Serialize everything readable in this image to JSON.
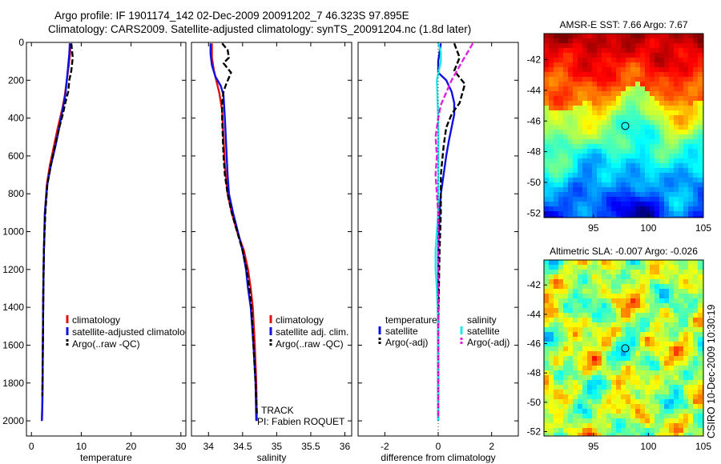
{
  "header": {
    "title_line1": "Argo profile: IF 1901174_142 02-Dec-2009 20091202_7 46.323S 97.895E",
    "title_line2": "Climatology: CARS2009. Satellite-adjusted climatology: synTS_20091204.nc (1.8d later)"
  },
  "side_label": "CSIRO 10-Dec-2009 10:30:19",
  "colors": {
    "climatology": "#e01010",
    "satellite": "#1010e0",
    "argo": "#000000",
    "satellite_salinity": "#20e8e8",
    "argo_salinity": "#e020e0"
  },
  "chart_data": [
    {
      "id": "temperature",
      "type": "line",
      "xlabel": "temperature",
      "ylabel": "",
      "xlim": [
        -1,
        31
      ],
      "ylim": [
        2080,
        0
      ],
      "xticks": [
        0,
        10,
        20,
        30
      ],
      "yticks": [
        0,
        200,
        400,
        600,
        800,
        1000,
        1200,
        1400,
        1600,
        1800,
        2000
      ],
      "legend": {
        "position": "lower-right",
        "entries": [
          "climatology",
          "satellite-adjusted climatology",
          "Argo(..raw -QC)"
        ]
      },
      "series": [
        {
          "name": "climatology",
          "color": "#e01010",
          "dash": false,
          "points": [
            [
              7.8,
              5
            ],
            [
              7.8,
              50
            ],
            [
              7.5,
              120
            ],
            [
              7.1,
              200
            ],
            [
              6.7,
              280
            ],
            [
              6.2,
              350
            ],
            [
              5.3,
              450
            ],
            [
              4.5,
              550
            ],
            [
              3.7,
              650
            ],
            [
              3.1,
              750
            ],
            [
              2.7,
              900
            ],
            [
              2.5,
              1100
            ],
            [
              2.4,
              1300
            ],
            [
              2.3,
              1600
            ],
            [
              2.2,
              1900
            ],
            [
              2.1,
              2000
            ]
          ]
        },
        {
          "name": "satellite-adjusted climatology",
          "color": "#1010e0",
          "dash": false,
          "points": [
            [
              7.7,
              5
            ],
            [
              7.6,
              60
            ],
            [
              7.4,
              120
            ],
            [
              7.1,
              200
            ],
            [
              6.8,
              280
            ],
            [
              6.3,
              350
            ],
            [
              5.6,
              450
            ],
            [
              4.8,
              550
            ],
            [
              3.9,
              650
            ],
            [
              3.2,
              750
            ],
            [
              2.7,
              900
            ],
            [
              2.5,
              1100
            ],
            [
              2.4,
              1300
            ],
            [
              2.3,
              1600
            ],
            [
              2.2,
              1900
            ],
            [
              2.1,
              2000
            ]
          ]
        },
        {
          "name": "Argo(..raw -QC)",
          "color": "#000000",
          "dash": true,
          "points": [
            [
              8.0,
              5
            ],
            [
              8.3,
              80
            ],
            [
              8.0,
              150
            ],
            [
              7.6,
              200
            ],
            [
              7.4,
              260
            ],
            [
              6.8,
              320
            ],
            [
              6.3,
              380
            ],
            [
              5.6,
              450
            ],
            [
              4.7,
              550
            ],
            [
              3.9,
              650
            ],
            [
              3.2,
              750
            ],
            [
              2.8,
              900
            ],
            [
              2.5,
              1100
            ],
            [
              2.4,
              1300
            ],
            [
              2.3,
              1600
            ],
            [
              2.2,
              1870
            ]
          ]
        }
      ]
    },
    {
      "id": "salinity",
      "type": "line",
      "xlabel": "salinity",
      "ylabel": "",
      "xlim": [
        33.75,
        36.1
      ],
      "ylim": [
        2080,
        0
      ],
      "xticks": [
        34,
        34.5,
        35,
        35.5,
        36
      ],
      "legend": {
        "position": "lower-right",
        "entries": [
          "climatology",
          "satellite adj. clim.",
          "Argo(..raw -QC)"
        ]
      },
      "annotations": [
        "TRACK",
        "PI: Fabien ROQUET"
      ],
      "series": [
        {
          "name": "climatology",
          "color": "#e01010",
          "dash": false,
          "points": [
            [
              34.05,
              5
            ],
            [
              34.05,
              80
            ],
            [
              34.08,
              150
            ],
            [
              34.12,
              210
            ],
            [
              34.16,
              270
            ],
            [
              34.2,
              360
            ],
            [
              34.22,
              500
            ],
            [
              34.24,
              650
            ],
            [
              34.28,
              800
            ],
            [
              34.34,
              900
            ],
            [
              34.42,
              1000
            ],
            [
              34.52,
              1100
            ],
            [
              34.58,
              1200
            ],
            [
              34.62,
              1300
            ],
            [
              34.65,
              1400
            ],
            [
              34.68,
              1600
            ],
            [
              34.7,
              1800
            ],
            [
              34.71,
              2000
            ]
          ]
        },
        {
          "name": "satellite adj. clim.",
          "color": "#1010e0",
          "dash": false,
          "points": [
            [
              34.03,
              5
            ],
            [
              34.03,
              60
            ],
            [
              34.05,
              120
            ],
            [
              34.1,
              180
            ],
            [
              34.18,
              230
            ],
            [
              34.22,
              280
            ],
            [
              34.24,
              400
            ],
            [
              34.26,
              550
            ],
            [
              34.28,
              700
            ],
            [
              34.3,
              800
            ],
            [
              34.36,
              900
            ],
            [
              34.43,
              1000
            ],
            [
              34.5,
              1100
            ],
            [
              34.55,
              1200
            ],
            [
              34.58,
              1300
            ],
            [
              34.62,
              1400
            ],
            [
              34.66,
              1600
            ],
            [
              34.69,
              1800
            ],
            [
              34.7,
              2000
            ]
          ]
        },
        {
          "name": "Argo(..raw -QC)",
          "color": "#000000",
          "dash": true,
          "points": [
            [
              34.2,
              5
            ],
            [
              34.28,
              40
            ],
            [
              34.3,
              80
            ],
            [
              34.22,
              110
            ],
            [
              34.33,
              160
            ],
            [
              34.26,
              220
            ],
            [
              34.22,
              260
            ],
            [
              34.2,
              320
            ],
            [
              34.2,
              400
            ],
            [
              34.21,
              500
            ],
            [
              34.22,
              600
            ],
            [
              34.24,
              700
            ],
            [
              34.28,
              800
            ],
            [
              34.34,
              900
            ],
            [
              34.42,
              1000
            ],
            [
              34.5,
              1100
            ],
            [
              34.56,
              1200
            ],
            [
              34.6,
              1300
            ],
            [
              34.63,
              1400
            ],
            [
              34.66,
              1600
            ],
            [
              34.69,
              1800
            ],
            [
              34.71,
              1970
            ]
          ]
        }
      ]
    },
    {
      "id": "difference",
      "type": "line",
      "xlabel": "difference from climatology",
      "ylabel": "",
      "xlim": [
        -3,
        3
      ],
      "ylim": [
        2080,
        0
      ],
      "xticks": [
        -2,
        0,
        2
      ],
      "legend": {
        "position": "lower-center",
        "groups": [
          "temperature",
          "salinity"
        ],
        "entries": [
          "satellite",
          "Argo(-adj)",
          "satellite",
          "Argo(-adj)"
        ]
      },
      "series": [
        {
          "name": "temperature satellite",
          "color": "#1010e0",
          "dash": false,
          "points": [
            [
              0.1,
              5
            ],
            [
              0.0,
              100
            ],
            [
              0.0,
              160
            ],
            [
              0.3,
              200
            ],
            [
              0.5,
              260
            ],
            [
              0.6,
              320
            ],
            [
              0.6,
              380
            ],
            [
              0.5,
              450
            ],
            [
              0.4,
              520
            ],
            [
              0.3,
              600
            ],
            [
              0.2,
              700
            ],
            [
              0.1,
              800
            ],
            [
              0.05,
              900
            ],
            [
              0.0,
              1100
            ],
            [
              0.0,
              1500
            ],
            [
              0.0,
              2000
            ]
          ]
        },
        {
          "name": "temperature Argo(-adj)",
          "color": "#000000",
          "dash": true,
          "points": [
            [
              0.6,
              5
            ],
            [
              0.8,
              80
            ],
            [
              0.6,
              150
            ],
            [
              1.0,
              220
            ],
            [
              0.8,
              320
            ],
            [
              0.5,
              380
            ],
            [
              0.3,
              450
            ],
            [
              0.2,
              550
            ],
            [
              0.1,
              700
            ],
            [
              0.1,
              900
            ],
            [
              0.05,
              1100
            ],
            [
              0.0,
              1500
            ],
            [
              0.0,
              1870
            ]
          ]
        },
        {
          "name": "salinity satellite",
          "color": "#20e8e8",
          "dash": false,
          "points": [
            [
              0.0,
              5
            ],
            [
              0.1,
              50
            ],
            [
              0.1,
              100
            ],
            [
              -0.05,
              200
            ],
            [
              0.0,
              400
            ],
            [
              0.0,
              700
            ],
            [
              0.0,
              900
            ],
            [
              -0.05,
              1000
            ],
            [
              -0.1,
              1100
            ],
            [
              -0.1,
              1200
            ],
            [
              -0.05,
              1300
            ],
            [
              0.0,
              1500
            ],
            [
              0.0,
              2000
            ]
          ]
        },
        {
          "name": "salinity Argo(-adj)",
          "color": "#e020e0",
          "dash": true,
          "points": [
            [
              1.3,
              5
            ],
            [
              0.9,
              100
            ],
            [
              0.5,
              200
            ],
            [
              0.1,
              330
            ],
            [
              0.0,
              400
            ],
            [
              -0.1,
              500
            ],
            [
              -0.05,
              600
            ],
            [
              -0.1,
              700
            ],
            [
              -0.05,
              800
            ],
            [
              0.0,
              900
            ],
            [
              0.0,
              1000
            ],
            [
              0.0,
              1500
            ],
            [
              0.0,
              1980
            ]
          ]
        }
      ]
    },
    {
      "id": "sst_map",
      "type": "heatmap",
      "title": "AMSR-E SST: 7.66  Argo: 7.67",
      "xlim": [
        90.5,
        105
      ],
      "ylim": [
        -52.3,
        -40.3
      ],
      "xticks": [
        95,
        100,
        105
      ],
      "yticks": [
        -42,
        -44,
        -46,
        -48,
        -50,
        -52
      ],
      "marker": {
        "lon": 97.895,
        "lat": -46.323
      }
    },
    {
      "id": "sla_map",
      "type": "heatmap",
      "title": "Altimetric SLA: -0.007  Argo: -0.026",
      "xlim": [
        90.5,
        105
      ],
      "ylim": [
        -52.3,
        -40.3
      ],
      "xticks": [
        95,
        100,
        105
      ],
      "yticks": [
        -42,
        -44,
        -46,
        -48,
        -50,
        -52
      ],
      "marker": {
        "lon": 97.895,
        "lat": -46.323
      }
    }
  ]
}
